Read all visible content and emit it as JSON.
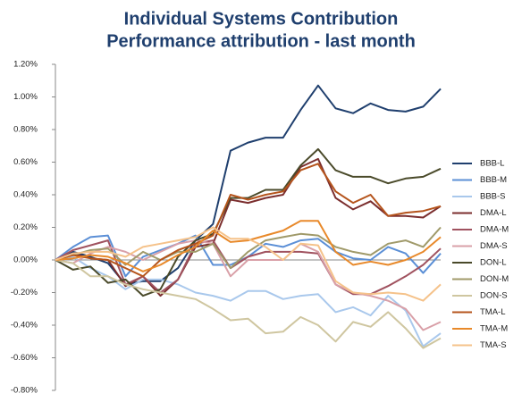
{
  "chart_data": {
    "type": "line",
    "title": "Individual Systems Contribution",
    "subtitle": "Performance attribution - last month",
    "categories": [
      null,
      null,
      null,
      null,
      null,
      null,
      null,
      null,
      null,
      null,
      null,
      null,
      null,
      null,
      null,
      null,
      null,
      null,
      null,
      null,
      null,
      null,
      null
    ],
    "ylim": [
      -0.8,
      1.2
    ],
    "yticks": [
      {
        "value": -0.8,
        "label": "-0.80%"
      },
      {
        "value": -0.6,
        "label": "-0.60%"
      },
      {
        "value": -0.4,
        "label": "-0.40%"
      },
      {
        "value": -0.2,
        "label": "-0.20%"
      },
      {
        "value": 0,
        "label": "0.00%"
      },
      {
        "value": 0.2,
        "label": "0.20%"
      },
      {
        "value": 0.4,
        "label": "0.40%"
      },
      {
        "value": 0.6,
        "label": "0.60%"
      },
      {
        "value": 0.8,
        "label": "0.80%"
      },
      {
        "value": 1.0,
        "label": "1.00%"
      },
      {
        "value": 1.2,
        "label": "1.20%"
      }
    ],
    "grid": false,
    "legend": "right",
    "series": [
      {
        "name": "BBB-L",
        "color": "#1f3f6e",
        "values": [
          0,
          0.05,
          0.02,
          -0.02,
          -0.15,
          -0.13,
          -0.13,
          -0.05,
          0.12,
          0.22,
          0.67,
          0.72,
          0.75,
          0.75,
          0.92,
          1.07,
          0.93,
          0.9,
          0.96,
          0.92,
          0.91,
          0.94,
          1.05
        ]
      },
      {
        "name": "BBB-M",
        "color": "#5b8fd6",
        "values": [
          0,
          0.08,
          0.14,
          0.15,
          -0.1,
          0.02,
          0.06,
          0.1,
          0.15,
          -0.03,
          -0.03,
          0.02,
          0.1,
          0.08,
          0.12,
          0.13,
          0.05,
          0.01,
          0,
          0.08,
          0.04,
          -0.08,
          0.04
        ]
      },
      {
        "name": "BBB-S",
        "color": "#a9c8ec",
        "values": [
          0,
          0.02,
          -0.05,
          -0.1,
          -0.18,
          -0.12,
          -0.12,
          -0.15,
          -0.2,
          -0.22,
          -0.25,
          -0.19,
          -0.19,
          -0.24,
          -0.22,
          -0.21,
          -0.32,
          -0.29,
          -0.34,
          -0.22,
          -0.31,
          -0.53,
          -0.45
        ]
      },
      {
        "name": "DMA-L",
        "color": "#7b2e2e",
        "values": [
          0,
          0.04,
          0.01,
          0,
          -0.16,
          -0.1,
          -0.22,
          -0.12,
          0.08,
          0.1,
          0.37,
          0.35,
          0.38,
          0.4,
          0.57,
          0.62,
          0.38,
          0.31,
          0.36,
          0.27,
          0.27,
          0.26,
          0.33
        ]
      },
      {
        "name": "DMA-M",
        "color": "#a0525f",
        "values": [
          0,
          0.06,
          0.09,
          0.12,
          -0.15,
          -0.1,
          -0.2,
          -0.12,
          0.1,
          0.12,
          -0.05,
          0.02,
          0.05,
          0.05,
          0.05,
          0.04,
          -0.15,
          -0.21,
          -0.21,
          -0.16,
          -0.1,
          -0.03,
          0.07
        ]
      },
      {
        "name": "DMA-S",
        "color": "#d9a0a8",
        "values": [
          0,
          -0.02,
          0.04,
          0.08,
          0.05,
          0,
          0.05,
          0.1,
          0.12,
          0.1,
          -0.1,
          0,
          0,
          0,
          0.1,
          0.05,
          -0.15,
          -0.2,
          -0.22,
          -0.25,
          -0.3,
          -0.43,
          -0.38
        ]
      },
      {
        "name": "DON-L",
        "color": "#4a4a2a",
        "values": [
          0,
          -0.06,
          -0.04,
          -0.14,
          -0.12,
          -0.22,
          -0.18,
          0.02,
          0.12,
          0.16,
          0.38,
          0.38,
          0.43,
          0.43,
          0.58,
          0.68,
          0.55,
          0.51,
          0.51,
          0.47,
          0.5,
          0.51,
          0.56
        ]
      },
      {
        "name": "DON-M",
        "color": "#a09a6a",
        "values": [
          0,
          0.03,
          0.06,
          0.07,
          -0.03,
          0.05,
          0,
          0.05,
          0.05,
          0.1,
          -0.05,
          0.05,
          0.12,
          0.14,
          0.16,
          0.15,
          0.08,
          0.05,
          0.03,
          0.1,
          0.12,
          0.08,
          0.2
        ]
      },
      {
        "name": "DON-S",
        "color": "#cfc6a0",
        "values": [
          0,
          -0.02,
          -0.1,
          -0.1,
          -0.15,
          -0.18,
          -0.2,
          -0.22,
          -0.24,
          -0.3,
          -0.37,
          -0.36,
          -0.45,
          -0.44,
          -0.35,
          -0.4,
          -0.5,
          -0.38,
          -0.41,
          -0.32,
          -0.42,
          -0.54,
          -0.48
        ]
      },
      {
        "name": "TMA-L",
        "color": "#b5541c",
        "values": [
          0,
          0.03,
          0.01,
          0,
          -0.05,
          -0.1,
          0,
          0.06,
          0.1,
          0.15,
          0.4,
          0.37,
          0.4,
          0.42,
          0.55,
          0.59,
          0.42,
          0.35,
          0.4,
          0.27,
          0.29,
          0.3,
          0.33
        ]
      },
      {
        "name": "TMA-M",
        "color": "#e8892a",
        "values": [
          0,
          0.01,
          0.03,
          0.02,
          -0.02,
          -0.07,
          -0.03,
          0.03,
          0.08,
          0.18,
          0.11,
          0.12,
          0.15,
          0.18,
          0.24,
          0.24,
          0.05,
          -0.03,
          -0.01,
          -0.03,
          0,
          0.05,
          0.14
        ]
      },
      {
        "name": "TMA-S",
        "color": "#f5c28a",
        "values": [
          0,
          0.04,
          0.05,
          0.05,
          0.02,
          0.08,
          0.1,
          0.12,
          0.14,
          0.2,
          0.13,
          0.13,
          0.08,
          0,
          0.1,
          0.09,
          -0.13,
          -0.2,
          -0.21,
          -0.2,
          -0.21,
          -0.25,
          -0.15
        ]
      }
    ]
  }
}
